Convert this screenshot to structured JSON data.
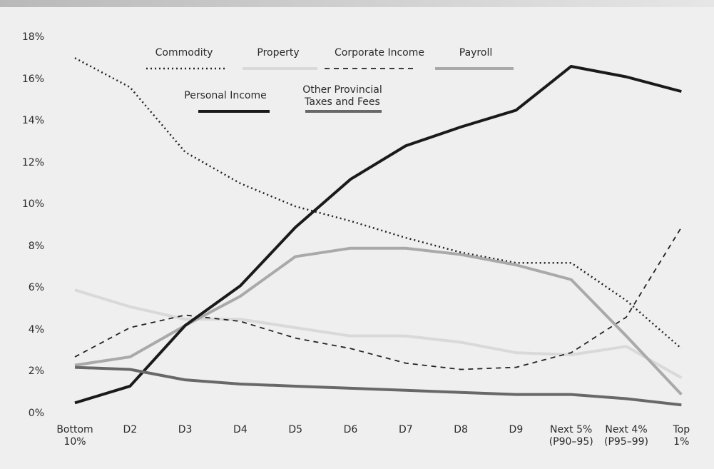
{
  "chart_data": {
    "type": "line",
    "categories": [
      "Bottom\n10%",
      "D2",
      "D3",
      "D4",
      "D5",
      "D6",
      "D7",
      "D8",
      "D9",
      "Next 5%\n(P90–95)",
      "Next 4%\n(P95–99)",
      "Top 1%"
    ],
    "ylim": [
      0,
      18
    ],
    "yticks": [
      {
        "value": 0,
        "label": "0%"
      },
      {
        "value": 2,
        "label": "2%"
      },
      {
        "value": 4,
        "label": "4%"
      },
      {
        "value": 6,
        "label": "6%"
      },
      {
        "value": 8,
        "label": "8%"
      },
      {
        "value": 10,
        "label": "10%"
      },
      {
        "value": 12,
        "label": "12%"
      },
      {
        "value": 14,
        "label": "14%"
      },
      {
        "value": 16,
        "label": "16%"
      },
      {
        "value": 18,
        "label": "18%"
      }
    ],
    "grid": false,
    "series": [
      {
        "name": "Commodity",
        "color": "#222222",
        "style": "dotted",
        "values": [
          17.0,
          15.6,
          12.5,
          11.0,
          9.9,
          9.2,
          8.4,
          7.7,
          7.2,
          7.2,
          5.4,
          3.1
        ]
      },
      {
        "name": "Property",
        "color": "#d9d9d9",
        "style": "solid",
        "values": [
          5.9,
          5.1,
          4.5,
          4.5,
          4.1,
          3.7,
          3.7,
          3.4,
          2.9,
          2.8,
          3.2,
          1.7
        ]
      },
      {
        "name": "Corporate Income",
        "color": "#222222",
        "style": "dashed",
        "values": [
          2.7,
          4.1,
          4.7,
          4.4,
          3.6,
          3.1,
          2.4,
          2.1,
          2.2,
          2.9,
          4.6,
          8.9
        ]
      },
      {
        "name": "Payroll",
        "color": "#a9a9a9",
        "style": "solid",
        "values": [
          2.3,
          2.7,
          4.2,
          5.6,
          7.5,
          7.9,
          7.9,
          7.6,
          7.1,
          6.4,
          3.7,
          0.9
        ]
      },
      {
        "name": "Personal Income",
        "color": "#1a1a1a",
        "style": "solid",
        "values": [
          0.5,
          1.3,
          4.2,
          6.1,
          8.9,
          11.2,
          12.8,
          13.7,
          14.5,
          16.6,
          16.1,
          15.4
        ]
      },
      {
        "name": "Other Provincial\nTaxes and Fees",
        "color": "#686868",
        "style": "solid",
        "values": [
          2.2,
          2.1,
          1.6,
          1.4,
          1.3,
          1.2,
          1.1,
          1.0,
          0.9,
          0.9,
          0.7,
          0.4
        ]
      }
    ]
  }
}
